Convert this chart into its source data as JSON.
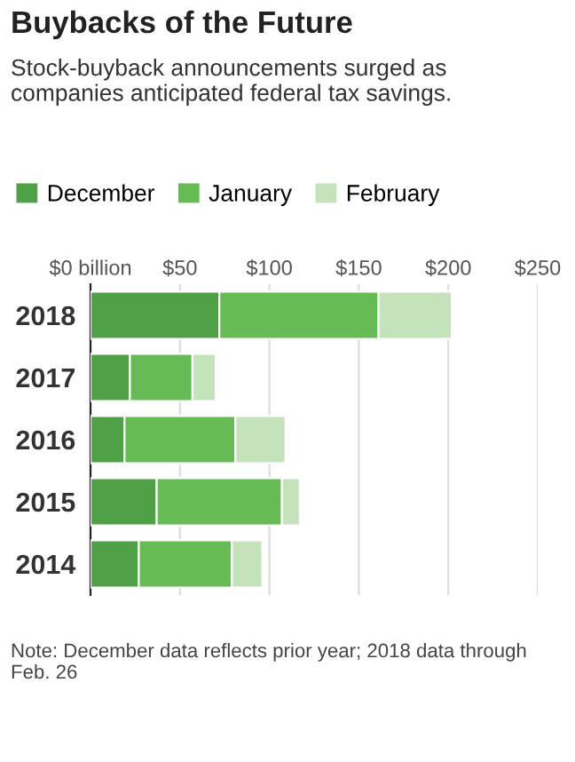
{
  "chart_data": {
    "type": "bar",
    "orientation": "horizontal",
    "stacked": true,
    "title": "Buybacks of the Future",
    "subtitle": "Stock-buyback announcements surged as companies anticipated federal tax savings.",
    "categories": [
      "2018",
      "2017",
      "2016",
      "2015",
      "2014"
    ],
    "series": [
      {
        "name": "December",
        "color": "#4fa046",
        "values": [
          72,
          22,
          19,
          37,
          27
        ]
      },
      {
        "name": "January",
        "color": "#66bb55",
        "values": [
          89,
          35,
          62,
          70,
          52
        ]
      },
      {
        "name": "February",
        "color": "#c4e3bb",
        "values": [
          41,
          13,
          28,
          10,
          17
        ]
      }
    ],
    "xlim": [
      0,
      250
    ],
    "xticks": [
      {
        "value": 0,
        "label": "$0 billion"
      },
      {
        "value": 50,
        "label": "$50"
      },
      {
        "value": 100,
        "label": "$100"
      },
      {
        "value": 150,
        "label": "$150"
      },
      {
        "value": 200,
        "label": "$200"
      },
      {
        "value": 250,
        "label": "$250"
      }
    ],
    "grid": "x",
    "legend": "top left",
    "annotations": [
      "Note: December data reflects prior year; 2018 data through Feb. 26"
    ]
  }
}
